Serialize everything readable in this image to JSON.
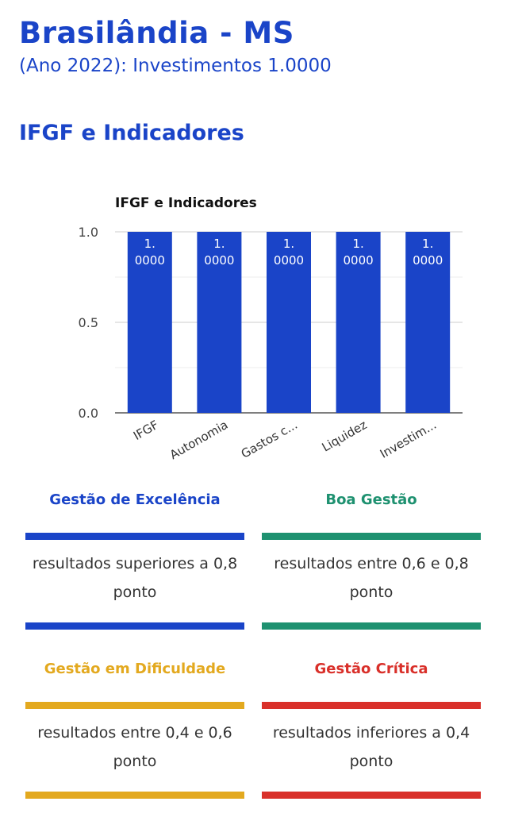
{
  "header": {
    "title": "Brasilândia - MS",
    "subtitle": "(Ano 2022): Investimentos 1.0000",
    "section_title": "IFGF e Indicadores"
  },
  "chart_data": {
    "type": "bar",
    "title": "IFGF e Indicadores",
    "categories": [
      "IFGF",
      "Autonomia",
      "Gastos c...",
      "Liquidez",
      "Investim..."
    ],
    "values": [
      1.0,
      1.0,
      1.0,
      1.0,
      1.0
    ],
    "data_labels": [
      "1.0000",
      "1.0000",
      "1.0000",
      "1.0000",
      "1.0000"
    ],
    "ylim": [
      0,
      1.0
    ],
    "yticks": [
      "0.0",
      "0.5",
      "1.0"
    ],
    "grid": true,
    "bar_color": "#1a44c8",
    "xlabel": "",
    "ylabel": ""
  },
  "legend": [
    {
      "label": "Gestão de Excelência",
      "description": "resultados superiores a 0,8 ponto",
      "color": "#1a44c8"
    },
    {
      "label": "Boa Gestão",
      "description": "resultados entre 0,6 e 0,8 ponto",
      "color": "#1e9170"
    },
    {
      "label": "Gestão em Dificuldade",
      "description": "resultados entre 0,4 e 0,6 ponto",
      "color": "#e3a91f"
    },
    {
      "label": "Gestão Crítica",
      "description": "resultados inferiores a 0,4 ponto",
      "color": "#d9302a"
    }
  ]
}
